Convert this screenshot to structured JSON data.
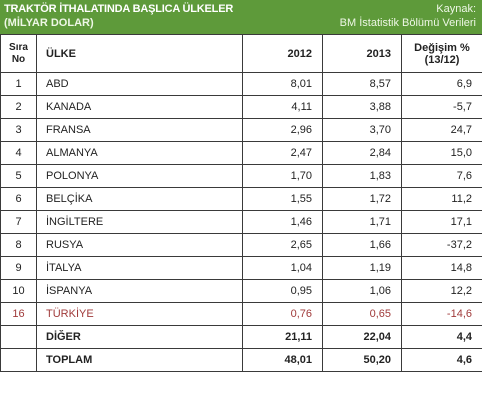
{
  "header": {
    "title": "TRAKTÖR İTHALATINDA BAŞLICA ÜLKELER",
    "subtitle": "(MİLYAR DOLAR)",
    "source_label": "Kaynak:",
    "source_name": "BM İstatistik Bölümü Verileri"
  },
  "columns": {
    "rank": "Sıra No",
    "country": "ÜLKE",
    "y2012": "2012",
    "y2013": "2013",
    "change": "Değişim % (13/12)"
  },
  "rows": [
    {
      "rank": "1",
      "country": "ABD",
      "y2012": "8,01",
      "y2013": "8,57",
      "change": "6,9"
    },
    {
      "rank": "2",
      "country": "KANADA",
      "y2012": "4,11",
      "y2013": "3,88",
      "change": "-5,7"
    },
    {
      "rank": "3",
      "country": "FRANSA",
      "y2012": "2,96",
      "y2013": "3,70",
      "change": "24,7"
    },
    {
      "rank": "4",
      "country": "ALMANYA",
      "y2012": "2,47",
      "y2013": "2,84",
      "change": "15,0"
    },
    {
      "rank": "5",
      "country": "POLONYA",
      "y2012": "1,70",
      "y2013": "1,83",
      "change": "7,6"
    },
    {
      "rank": "6",
      "country": "BELÇİKA",
      "y2012": "1,55",
      "y2013": "1,72",
      "change": "11,2"
    },
    {
      "rank": "7",
      "country": "İNGİLTERE",
      "y2012": "1,46",
      "y2013": "1,71",
      "change": "17,1"
    },
    {
      "rank": "8",
      "country": "RUSYA",
      "y2012": "2,65",
      "y2013": "1,66",
      "change": "-37,2"
    },
    {
      "rank": "9",
      "country": "İTALYA",
      "y2012": "1,04",
      "y2013": "1,19",
      "change": "14,8"
    },
    {
      "rank": "10",
      "country": "İSPANYA",
      "y2012": "0,95",
      "y2013": "1,06",
      "change": "12,2"
    },
    {
      "rank": "16",
      "country": "TÜRKİYE",
      "y2012": "0,76",
      "y2013": "0,65",
      "change": "-14,6"
    }
  ],
  "other": {
    "country": "DİĞER",
    "y2012": "21,11",
    "y2013": "22,04",
    "change": "4,4"
  },
  "total": {
    "country": "TOPLAM",
    "y2012": "48,01",
    "y2013": "50,20",
    "change": "4,6"
  },
  "colors": {
    "header_bg": "#5e9a3a",
    "highlight_text": "#a03a3a"
  }
}
